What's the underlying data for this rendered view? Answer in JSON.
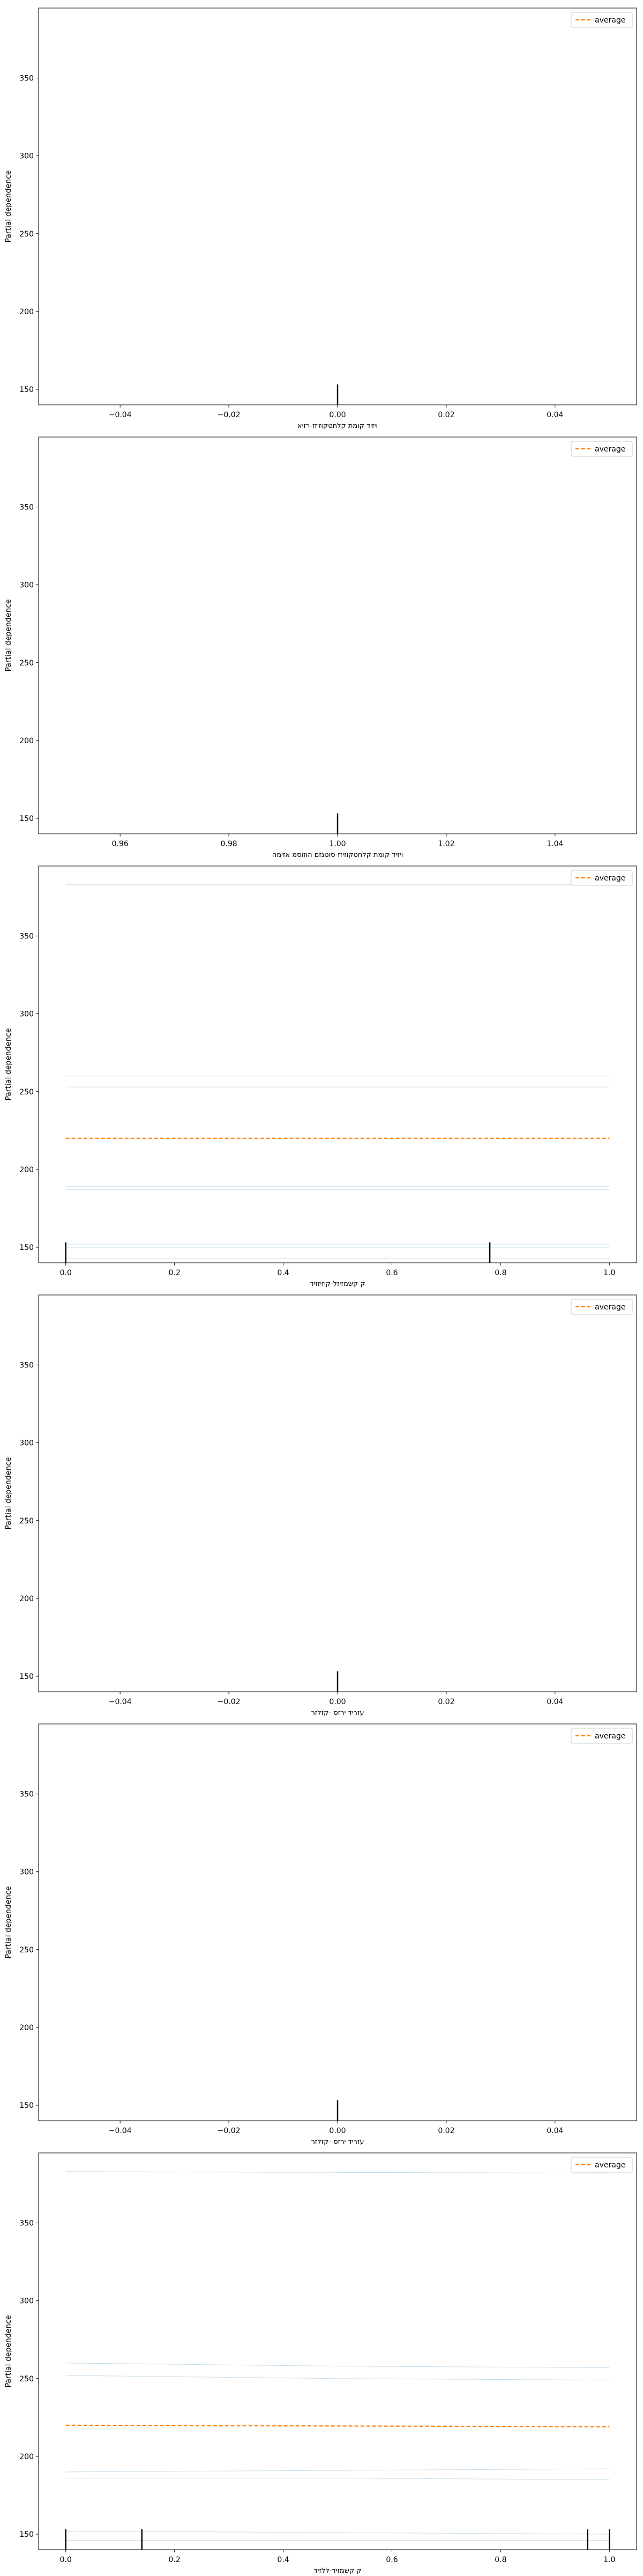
{
  "figure": {
    "legend_label": "average",
    "ylabel": "Partial dependence",
    "legend_position": "top-right",
    "average_color": "#ff7f0e",
    "ice_color": "#1f77b4",
    "rug_color": "#000000"
  },
  "chart_data": [
    {
      "type": "line",
      "xlabel": "ויזיד קומת קלחטקוזיזז-רזיא",
      "xlim": [
        -0.055,
        0.055
      ],
      "ylim": [
        140,
        395
      ],
      "xticks": [
        -0.04,
        -0.02,
        0.0,
        0.02,
        0.04
      ],
      "xtick_labels": [
        "−0.04",
        "−0.02",
        "0.00",
        "0.02",
        "0.04"
      ],
      "yticks": [
        150,
        200,
        250,
        300,
        350
      ],
      "ytick_labels": [
        "150",
        "200",
        "250",
        "300",
        "350"
      ],
      "rug": [
        0.0
      ],
      "series": []
    },
    {
      "type": "line",
      "xlabel": "ויזיד קומת קלחטקוזיזז-סוטנזם הוזוסמ אזימה",
      "xlim": [
        0.945,
        1.055
      ],
      "ylim": [
        140,
        395
      ],
      "xticks": [
        0.96,
        0.98,
        1.0,
        1.02,
        1.04
      ],
      "xtick_labels": [
        "0.96",
        "0.98",
        "1.00",
        "1.02",
        "1.04"
      ],
      "yticks": [
        150,
        200,
        250,
        300,
        350
      ],
      "ytick_labels": [
        "150",
        "200",
        "250",
        "300",
        "350"
      ],
      "rug": [
        1.0
      ],
      "series": []
    },
    {
      "type": "line",
      "xlabel": "ק קשמזיזל-קיזיזזיד",
      "xlim": [
        -0.05,
        1.05
      ],
      "ylim": [
        140,
        395
      ],
      "xticks": [
        0.0,
        0.2,
        0.4,
        0.6,
        0.8,
        1.0
      ],
      "xtick_labels": [
        "0.0",
        "0.2",
        "0.4",
        "0.6",
        "0.8",
        "1.0"
      ],
      "yticks": [
        150,
        200,
        250,
        300,
        350
      ],
      "ytick_labels": [
        "150",
        "200",
        "250",
        "300",
        "350"
      ],
      "rug": [
        0.0,
        0.78
      ],
      "series": [
        {
          "kind": "ice",
          "x": [
            0,
            1
          ],
          "values": [
            383,
            383
          ]
        },
        {
          "kind": "ice",
          "x": [
            0,
            1
          ],
          "values": [
            260,
            260
          ]
        },
        {
          "kind": "ice",
          "x": [
            0,
            1
          ],
          "values": [
            253,
            253
          ]
        },
        {
          "kind": "ice",
          "x": [
            0,
            1
          ],
          "values": [
            189,
            189
          ]
        },
        {
          "kind": "ice",
          "x": [
            0,
            1
          ],
          "values": [
            187,
            187
          ]
        },
        {
          "kind": "ice",
          "x": [
            0,
            1
          ],
          "values": [
            152,
            152
          ]
        },
        {
          "kind": "ice",
          "x": [
            0,
            1
          ],
          "values": [
            150,
            150
          ]
        },
        {
          "kind": "ice",
          "x": [
            0,
            1
          ],
          "values": [
            143,
            143
          ]
        },
        {
          "kind": "average",
          "name": "average",
          "x": [
            0,
            1
          ],
          "values": [
            220,
            220
          ]
        }
      ]
    },
    {
      "type": "line",
      "xlabel": "עזריד ירזס -קזלזר",
      "xlim": [
        -0.055,
        0.055
      ],
      "ylim": [
        140,
        395
      ],
      "xticks": [
        -0.04,
        -0.02,
        0.0,
        0.02,
        0.04
      ],
      "xtick_labels": [
        "−0.04",
        "−0.02",
        "0.00",
        "0.02",
        "0.04"
      ],
      "yticks": [
        150,
        200,
        250,
        300,
        350
      ],
      "ytick_labels": [
        "150",
        "200",
        "250",
        "300",
        "350"
      ],
      "rug": [
        0.0
      ],
      "series": []
    },
    {
      "type": "line",
      "xlabel": "עזריד ירזס -קזלזר",
      "xlim": [
        -0.055,
        0.055
      ],
      "ylim": [
        140,
        395
      ],
      "xticks": [
        -0.04,
        -0.02,
        0.0,
        0.02,
        0.04
      ],
      "xtick_labels": [
        "−0.04",
        "−0.02",
        "0.00",
        "0.02",
        "0.04"
      ],
      "yticks": [
        150,
        200,
        250,
        300,
        350
      ],
      "ytick_labels": [
        "150",
        "200",
        "250",
        "300",
        "350"
      ],
      "rug": [
        0.0
      ],
      "series": []
    },
    {
      "type": "line",
      "xlabel": "ק קשמזיד-ללזיד",
      "xlim": [
        -0.05,
        1.05
      ],
      "ylim": [
        140,
        395
      ],
      "xticks": [
        0.0,
        0.2,
        0.4,
        0.6,
        0.8,
        1.0
      ],
      "xtick_labels": [
        "0.0",
        "0.2",
        "0.4",
        "0.6",
        "0.8",
        "1.0"
      ],
      "yticks": [
        150,
        200,
        250,
        300,
        350
      ],
      "ytick_labels": [
        "150",
        "200",
        "250",
        "300",
        "350"
      ],
      "rug": [
        0.0,
        0.14,
        0.96,
        1.0
      ],
      "series": [
        {
          "kind": "ice",
          "x": [
            0,
            0.5,
            1
          ],
          "values": [
            383,
            382.5,
            382
          ]
        },
        {
          "kind": "ice",
          "x": [
            0,
            0.5,
            1
          ],
          "values": [
            260,
            258,
            257
          ]
        },
        {
          "kind": "ice",
          "x": [
            0,
            0.5,
            1
          ],
          "values": [
            252,
            250,
            249
          ]
        },
        {
          "kind": "ice",
          "x": [
            0,
            0.5,
            1
          ],
          "values": [
            190,
            191,
            192
          ]
        },
        {
          "kind": "ice",
          "x": [
            0,
            0.5,
            1
          ],
          "values": [
            186,
            186,
            185
          ]
        },
        {
          "kind": "ice",
          "x": [
            0,
            0.5,
            1
          ],
          "values": [
            152,
            151,
            150
          ]
        },
        {
          "kind": "ice",
          "x": [
            0,
            0.5,
            1
          ],
          "values": [
            146,
            146,
            146
          ]
        },
        {
          "kind": "average",
          "name": "average",
          "x": [
            0,
            0.5,
            1
          ],
          "values": [
            220,
            219.5,
            219
          ]
        }
      ]
    }
  ]
}
